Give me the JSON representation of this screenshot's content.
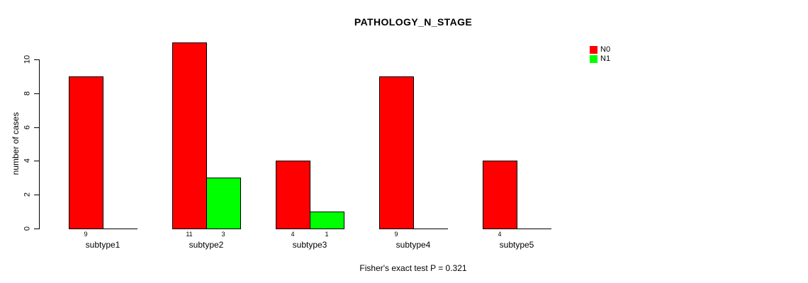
{
  "chart_data": {
    "type": "bar",
    "grouped": true,
    "title": "PATHOLOGY_N_STAGE",
    "xlabel": "",
    "ylabel": "number of cases",
    "categories": [
      "subtype1",
      "subtype2",
      "subtype3",
      "subtype4",
      "subtype5"
    ],
    "series": [
      {
        "name": "N0",
        "color": "#ff0000",
        "values": [
          9,
          11,
          4,
          9,
          4
        ]
      },
      {
        "name": "N1",
        "color": "#00ff00",
        "values": [
          0,
          3,
          1,
          0,
          0
        ]
      }
    ],
    "bar_value_labels": {
      "subtype1": [
        9,
        null
      ],
      "subtype2": [
        11,
        3
      ],
      "subtype3": [
        4,
        1
      ],
      "subtype4": [
        9,
        null
      ],
      "subtype5": [
        4,
        null
      ]
    },
    "ylim": [
      0,
      10
    ],
    "yticks": [
      0,
      2,
      4,
      6,
      8,
      10
    ],
    "grid": false,
    "legend_position": "top-right",
    "annotation": "Fisher's exact test P = 0.321"
  },
  "colors": {
    "background": "#ffffff",
    "axis": "#000000",
    "bar_border": "#000000",
    "series_N0": "#ff0000",
    "series_N1": "#00ff00"
  }
}
